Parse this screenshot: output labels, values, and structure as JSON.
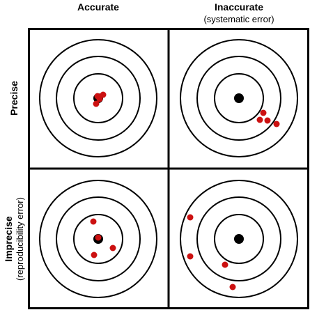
{
  "columns": {
    "accurate": {
      "title": "Accurate"
    },
    "inaccurate": {
      "title": "Inaccurate",
      "subtitle": "(systematic error)"
    }
  },
  "rows": {
    "precise": {
      "title": "Precise"
    },
    "imprecise": {
      "title": "Imprecise",
      "subtitle": "(reproducibility error)"
    }
  },
  "colors": {
    "ring": "#000000",
    "bullseye": "#000000",
    "shot": "#cc1111",
    "background": "#ffffff"
  },
  "icons": {
    "target": "concentric-rings-target-icon",
    "shot": "red-dot-icon"
  }
}
